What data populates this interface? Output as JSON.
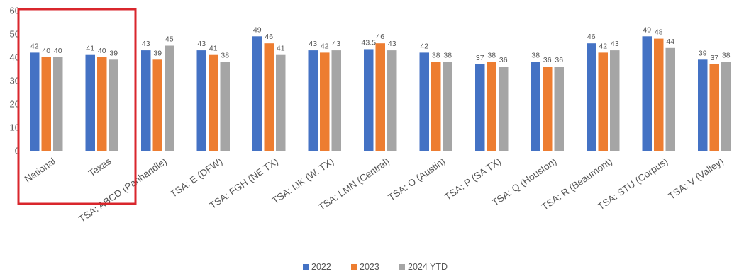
{
  "chart_data": {
    "type": "bar",
    "categories": [
      "National",
      "Texas",
      "TSA: ABCD (Panhandle)",
      "TSA: E (DFW)",
      "TSA: FGH (NE TX)",
      "TSA: IJK (W. TX)",
      "TSA: LMN (Central)",
      "TSA: O (Austin)",
      "TSA: P (SA TX)",
      "TSA: Q (Houston)",
      "TSA: R (Beaumont)",
      "TSA: STU (Corpus)",
      "TSA: V (Valley)"
    ],
    "series": [
      {
        "name": "2022",
        "color": "#4472C4",
        "values": [
          42,
          41,
          43,
          43,
          49,
          43,
          43.5,
          42,
          37,
          38,
          46,
          49,
          39
        ]
      },
      {
        "name": "2023",
        "color": "#ED7D31",
        "values": [
          40,
          40,
          39,
          41,
          46,
          42,
          46,
          38,
          38,
          36,
          42,
          48,
          37
        ]
      },
      {
        "name": "2024 YTD",
        "color": "#A5A5A5",
        "values": [
          40,
          39,
          45,
          38,
          41,
          43,
          43,
          38,
          36,
          36,
          43,
          44,
          38
        ]
      }
    ],
    "yticks": [
      "0",
      "10",
      "20",
      "30",
      "40",
      "50",
      "60"
    ],
    "ylim": [
      0,
      60
    ],
    "grid": false,
    "legend": "bottom-center",
    "highlight": {
      "categories": [
        "National",
        "Texas"
      ],
      "color": "#D9262C"
    }
  }
}
